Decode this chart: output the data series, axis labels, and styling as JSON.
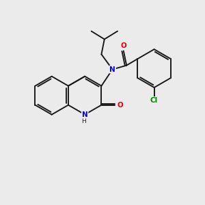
{
  "background_color": "#ebebeb",
  "bond_color": "#1a1a1a",
  "N_color": "#0000ee",
  "O_color": "#ee0000",
  "Cl_color": "#008800",
  "line_width": 1.4,
  "figsize": [
    3.0,
    3.0
  ],
  "dpi": 100,
  "xlim": [
    0,
    10
  ],
  "ylim": [
    0,
    10
  ]
}
